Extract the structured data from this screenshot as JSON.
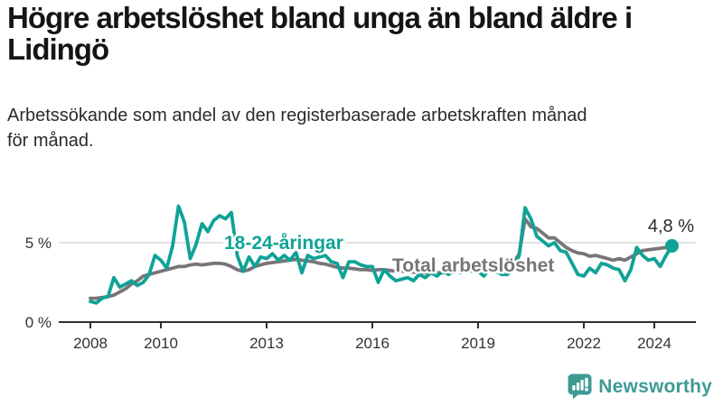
{
  "header": {
    "title": "Högre arbetslöshet bland unga än bland äldre i Lidingö",
    "subtitle": "Arbetssökande som andel av den registerbaserade arbetskraften månad för månad."
  },
  "footer": {
    "brand": "Newsworthy",
    "brand_color": "#3f9a94"
  },
  "colors": {
    "youth_line": "#0fa396",
    "total_line": "#797479",
    "axis": "#2f2f2f",
    "axis_text": "#333333",
    "gridline": "#d9d9d9",
    "annotation_text": "#2b2b2b",
    "background": "#ffffff"
  },
  "chart_data": {
    "type": "line",
    "title": "Högre arbetslöshet bland unga än bland äldre i Lidingö",
    "subtitle": "Arbetssökande som andel av den registerbaserade arbetskraften månad för månad.",
    "unit": "%",
    "x_start_year": 2008,
    "x_step_months": 2,
    "x_axis": {
      "ticks": [
        2008,
        2010,
        2013,
        2016,
        2019,
        2022,
        2024
      ],
      "range": [
        2007.1,
        2025.2
      ]
    },
    "y_axis": {
      "ticks": [
        {
          "value": 0,
          "label": "0 %"
        },
        {
          "value": 5,
          "label": "5 %"
        }
      ],
      "range": [
        0,
        7.8
      ]
    },
    "grid": "horizontal line at 5 % only",
    "legend": "inline labels on lines",
    "series": [
      {
        "name": "18-24-åringar",
        "color": "#0fa396",
        "values": [
          1.3,
          1.2,
          1.5,
          1.6,
          2.8,
          2.2,
          2.4,
          2.6,
          2.3,
          2.5,
          3.0,
          4.2,
          3.9,
          3.4,
          4.8,
          7.3,
          6.3,
          4.0,
          4.9,
          6.2,
          5.7,
          6.4,
          6.7,
          6.5,
          6.9,
          4.2,
          3.2,
          4.1,
          3.5,
          4.1,
          4.0,
          4.3,
          3.9,
          4.2,
          3.9,
          4.4,
          3.1,
          4.2,
          4.0,
          4.1,
          4.2,
          3.8,
          3.7,
          2.8,
          3.8,
          3.8,
          3.6,
          3.5,
          3.5,
          2.5,
          3.3,
          2.9,
          2.6,
          2.7,
          2.8,
          2.6,
          3.0,
          2.8,
          3.1,
          2.9,
          3.2,
          3.0,
          3.3,
          3.1,
          3.4,
          3.2,
          3.2,
          2.9,
          3.4,
          3.2,
          3.0,
          3.0,
          3.4,
          4.2,
          7.2,
          6.5,
          5.4,
          5.1,
          4.8,
          5.0,
          4.5,
          4.4,
          3.7,
          3.0,
          2.9,
          3.4,
          3.1,
          3.7,
          3.6,
          3.4,
          3.3,
          2.6,
          3.3,
          4.7,
          4.2,
          3.9,
          4.0,
          3.5,
          4.2,
          4.8
        ]
      },
      {
        "name": "Total arbetslöshet",
        "color": "#797479",
        "values": [
          1.5,
          1.5,
          1.55,
          1.6,
          1.7,
          1.9,
          2.1,
          2.4,
          2.6,
          2.9,
          3.0,
          3.1,
          3.2,
          3.3,
          3.4,
          3.5,
          3.5,
          3.6,
          3.65,
          3.6,
          3.65,
          3.7,
          3.7,
          3.65,
          3.5,
          3.3,
          3.2,
          3.3,
          3.5,
          3.6,
          3.7,
          3.75,
          3.8,
          3.85,
          3.9,
          3.95,
          3.9,
          3.85,
          3.8,
          3.7,
          3.65,
          3.55,
          3.45,
          3.4,
          3.4,
          3.35,
          3.3,
          3.3,
          3.25,
          3.3,
          3.3,
          3.25,
          3.2,
          3.2,
          3.2,
          3.15,
          3.15,
          3.1,
          3.1,
          3.1,
          3.1,
          3.1,
          3.15,
          3.15,
          3.2,
          3.25,
          3.3,
          3.3,
          3.35,
          3.4,
          3.45,
          3.55,
          3.7,
          4.3,
          6.5,
          6.0,
          5.9,
          5.6,
          5.3,
          5.3,
          5.0,
          4.7,
          4.5,
          4.35,
          4.3,
          4.15,
          4.2,
          4.1,
          4.0,
          3.9,
          4.0,
          3.9,
          4.1,
          4.3,
          4.5,
          4.55,
          4.6,
          4.65,
          4.7,
          4.7
        ]
      }
    ],
    "annotation": {
      "text": "4,8 %",
      "series": "18-24-åringar",
      "x": 2024.5,
      "value": 4.8
    },
    "end_dot": {
      "series": "18-24-åringar",
      "x": 2024.5,
      "value": 4.8
    }
  }
}
